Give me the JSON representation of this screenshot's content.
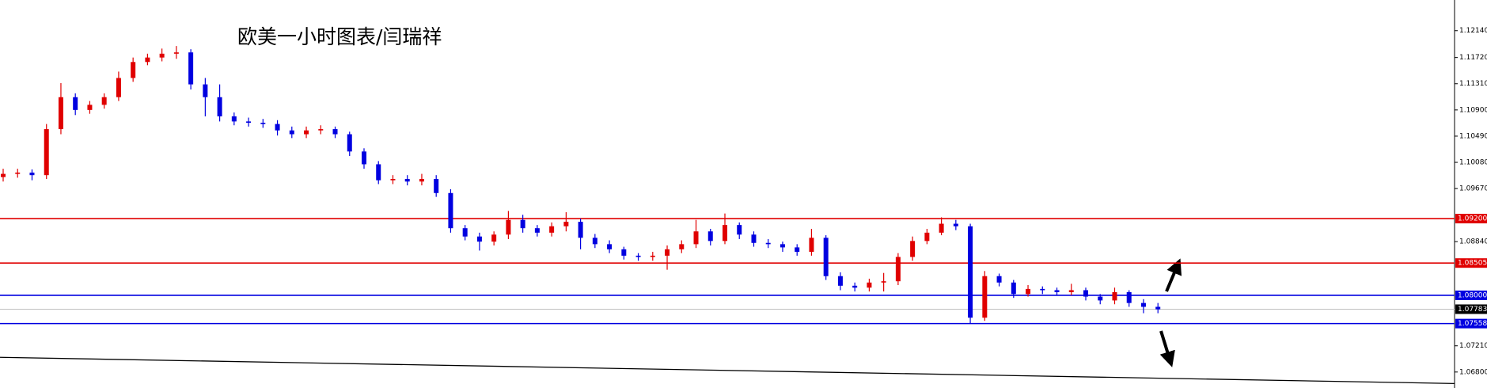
{
  "chart_data": {
    "type": "candlestick",
    "title": "欧美一小时图表/闫瑞祥",
    "up_color": "#e00000",
    "down_color": "#0000e0",
    "ylim": [
      1.0655,
      1.1262
    ],
    "yticks": [
      {
        "value": 1.1214,
        "label": "1.12140"
      },
      {
        "value": 1.1172,
        "label": "1.11720"
      },
      {
        "value": 1.1131,
        "label": "1.11310"
      },
      {
        "value": 1.109,
        "label": "1.10900"
      },
      {
        "value": 1.1049,
        "label": "1.10490"
      },
      {
        "value": 1.1008,
        "label": "1.10080"
      },
      {
        "value": 1.0967,
        "label": "1.09670"
      },
      {
        "value": 1.0884,
        "label": "1.08840"
      },
      {
        "value": 1.0721,
        "label": "1.07210"
      },
      {
        "value": 1.068,
        "label": "1.06800"
      }
    ],
    "levels": [
      {
        "value": 1.092,
        "label": "1.09200",
        "color": "#e00000"
      },
      {
        "value": 1.08505,
        "label": "1.08505",
        "color": "#e00000"
      },
      {
        "value": 1.08,
        "label": "1.08000",
        "color": "#0000e0"
      },
      {
        "value": 1.07783,
        "label": "1.07783",
        "color": "#000000"
      },
      {
        "value": 1.07558,
        "label": "1.07558",
        "color": "#0000e0"
      }
    ],
    "trendline": {
      "start": 1.0703,
      "end": 1.0662,
      "color": "#000000"
    },
    "open": [
      1.0985,
      1.099,
      1.0992,
      1.0988,
      1.106,
      1.111,
      1.109,
      1.1098,
      1.111,
      1.114,
      1.1165,
      1.1172,
      1.1178,
      1.118,
      1.113,
      1.111,
      1.108,
      1.1072,
      1.107,
      1.1068,
      1.1058,
      1.1052,
      1.1058,
      1.106,
      1.1052,
      1.1025,
      1.1005,
      1.098,
      1.0982,
      1.0978,
      1.0982,
      1.096,
      1.0905,
      1.0892,
      1.0884,
      1.0895,
      1.0918,
      1.0905,
      1.0898,
      1.0908,
      1.0915,
      1.089,
      1.088,
      1.0872,
      1.0862,
      1.086,
      1.0862,
      1.0872,
      1.088,
      1.09,
      1.0885,
      1.091,
      1.0895,
      1.0882,
      1.088,
      1.0875,
      1.0868,
      1.089,
      1.083,
      1.0815,
      1.0812,
      1.082,
      1.0822,
      1.086,
      1.0885,
      1.0898,
      1.0912,
      1.0908,
      1.0765,
      1.083,
      1.082,
      1.0802,
      1.081,
      1.0808,
      1.0805,
      1.0808,
      1.0798,
      1.0792,
      1.0805,
      1.0788,
      1.0782
    ],
    "high": [
      1.0998,
      1.0998,
      1.0997,
      1.1068,
      1.1132,
      1.1116,
      1.1104,
      1.1116,
      1.115,
      1.1172,
      1.1178,
      1.1186,
      1.119,
      1.1185,
      1.114,
      1.113,
      1.1086,
      1.1078,
      1.1076,
      1.1074,
      1.1064,
      1.1064,
      1.1066,
      1.1064,
      1.1056,
      1.103,
      1.101,
      1.0988,
      1.0988,
      1.099,
      1.0988,
      1.0966,
      1.091,
      1.0898,
      1.09,
      1.0932,
      1.0926,
      1.091,
      1.0914,
      1.093,
      1.092,
      1.0896,
      1.0886,
      1.0876,
      1.0866,
      1.0868,
      1.0878,
      1.0886,
      1.0918,
      1.0904,
      1.0928,
      1.0914,
      1.09,
      1.0888,
      1.0884,
      1.088,
      1.0904,
      1.0894,
      1.0836,
      1.082,
      1.0826,
      1.0835,
      1.0866,
      1.0892,
      1.0904,
      1.0922,
      1.0918,
      1.0912,
      1.0838,
      1.0834,
      1.0824,
      1.0816,
      1.0814,
      1.0812,
      1.0818,
      1.0812,
      1.0802,
      1.0812,
      1.0808,
      1.0794,
      1.0788
    ],
    "low": [
      1.0978,
      1.0984,
      1.098,
      1.0982,
      1.1052,
      1.1082,
      1.1084,
      1.1092,
      1.1104,
      1.1134,
      1.116,
      1.1166,
      1.117,
      1.1122,
      1.108,
      1.1072,
      1.1066,
      1.1064,
      1.1062,
      1.105,
      1.1046,
      1.1046,
      1.1052,
      1.1046,
      1.1018,
      1.0998,
      1.0974,
      1.0974,
      1.0972,
      1.0972,
      1.0954,
      1.0898,
      1.0886,
      1.087,
      1.0878,
      1.0888,
      1.0898,
      1.0892,
      1.0892,
      1.09,
      1.0872,
      1.0874,
      1.0866,
      1.0856,
      1.0854,
      1.0854,
      1.084,
      1.0866,
      1.0874,
      1.0878,
      1.088,
      1.0888,
      1.0876,
      1.0874,
      1.0868,
      1.0862,
      1.0862,
      1.0824,
      1.0808,
      1.0806,
      1.0806,
      1.0806,
      1.0816,
      1.0854,
      1.088,
      1.0894,
      1.0902,
      1.0756,
      1.076,
      1.0814,
      1.0796,
      1.0798,
      1.0802,
      1.08,
      1.08,
      1.0792,
      1.0786,
      1.0786,
      1.0782,
      1.0772,
      1.0772
    ],
    "close": [
      1.099,
      1.0992,
      1.0988,
      1.106,
      1.111,
      1.109,
      1.1098,
      1.111,
      1.114,
      1.1165,
      1.1172,
      1.1178,
      1.118,
      1.113,
      1.111,
      1.108,
      1.1072,
      1.107,
      1.1068,
      1.1058,
      1.1052,
      1.1058,
      1.106,
      1.1052,
      1.1025,
      1.1005,
      1.098,
      1.0982,
      1.0978,
      1.0982,
      1.096,
      1.0905,
      1.0892,
      1.0884,
      1.0895,
      1.0918,
      1.0905,
      1.0898,
      1.0908,
      1.0915,
      1.089,
      1.088,
      1.0872,
      1.0862,
      1.086,
      1.0862,
      1.0872,
      1.088,
      1.09,
      1.0885,
      1.091,
      1.0895,
      1.0882,
      1.088,
      1.0875,
      1.0868,
      1.089,
      1.083,
      1.0815,
      1.0812,
      1.082,
      1.0822,
      1.086,
      1.0885,
      1.0898,
      1.0912,
      1.0908,
      1.0765,
      1.083,
      1.082,
      1.0802,
      1.081,
      1.0808,
      1.0805,
      1.0808,
      1.0798,
      1.0792,
      1.0805,
      1.0788,
      1.0782,
      1.0778
    ]
  }
}
